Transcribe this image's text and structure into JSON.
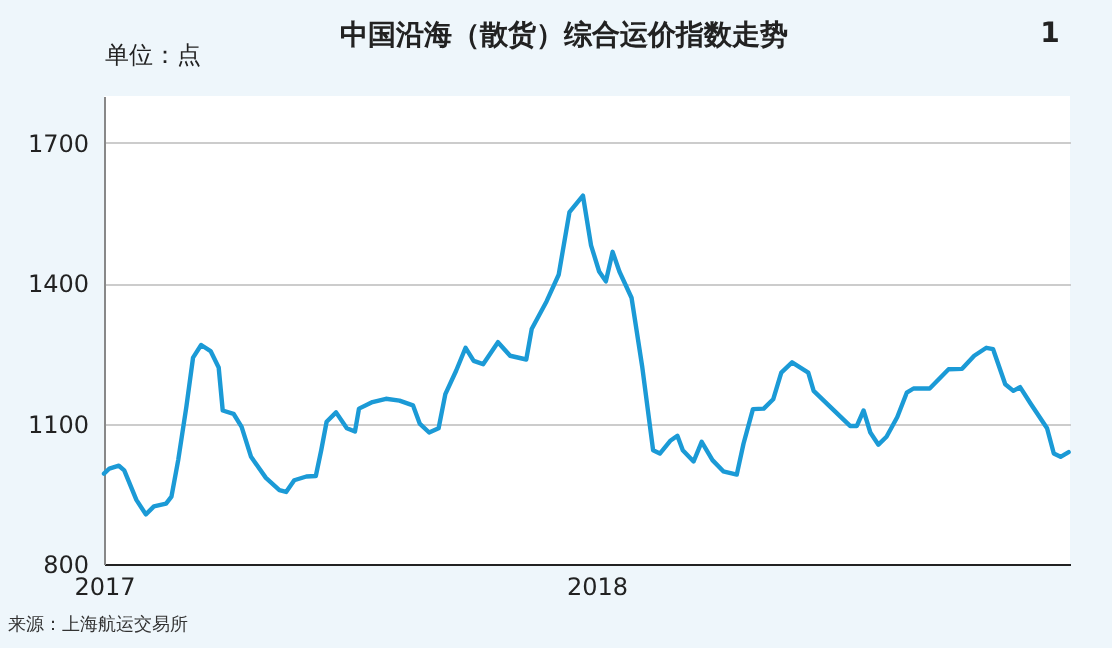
{
  "chart_data": {
    "type": "line",
    "title": "中国沿海（散货）综合运价指数走势",
    "ylabel": "单位：点",
    "annotations": [
      "1",
      "来源：上海航运交易所"
    ],
    "x": [
      "2017-01-01",
      "2017-01-05",
      "2017-01-12",
      "2017-01-16",
      "2017-01-25",
      "2017-02-01",
      "2017-02-07",
      "2017-02-16",
      "2017-02-20",
      "2017-02-25",
      "2017-03-03",
      "2017-03-08",
      "2017-03-14",
      "2017-03-21",
      "2017-03-27",
      "2017-03-30",
      "2017-04-07",
      "2017-04-13",
      "2017-04-20",
      "2017-05-01",
      "2017-05-11",
      "2017-05-16",
      "2017-05-22",
      "2017-05-31",
      "2017-06-07",
      "2017-06-11",
      "2017-06-15",
      "2017-06-22",
      "2017-06-30",
      "2017-07-06",
      "2017-07-09",
      "2017-07-19",
      "2017-07-29",
      "2017-08-08",
      "2017-08-18",
      "2017-08-23",
      "2017-08-30",
      "2017-09-06",
      "2017-09-11",
      "2017-09-19",
      "2017-09-26",
      "2017-10-02",
      "2017-10-09",
      "2017-10-20",
      "2017-10-29",
      "2017-11-10",
      "2017-11-14",
      "2017-11-25",
      "2017-12-04",
      "2017-12-12",
      "2017-12-22",
      "2017-12-28",
      "2018-01-03",
      "2018-01-08",
      "2018-01-13",
      "2018-01-18",
      "2018-01-27",
      "2018-02-04",
      "2018-02-12",
      "2018-02-17",
      "2018-02-25",
      "2018-03-02",
      "2018-03-06",
      "2018-03-14",
      "2018-03-20",
      "2018-03-28",
      "2018-04-05",
      "2018-04-15",
      "2018-04-20",
      "2018-04-27",
      "2018-05-05",
      "2018-05-12",
      "2018-05-18",
      "2018-05-26",
      "2018-06-07",
      "2018-06-11",
      "2018-06-21",
      "2018-07-08",
      "2018-07-13",
      "2018-07-18",
      "2018-07-23",
      "2018-07-29",
      "2018-08-04",
      "2018-08-12",
      "2018-08-19",
      "2018-08-24",
      "2018-09-05",
      "2018-09-19",
      "2018-09-29",
      "2018-10-08",
      "2018-10-17",
      "2018-10-22",
      "2018-10-31",
      "2018-11-06",
      "2018-11-11",
      "2018-11-19",
      "2018-12-01",
      "2018-12-06",
      "2018-12-11",
      "2018-12-17"
    ],
    "series": [
      {
        "color": "#1b9ad6",
        "values": [
          993,
          1004,
          1010,
          1000,
          937,
          906,
          923,
          929,
          944,
          1022,
          1135,
          1241,
          1268,
          1255,
          1220,
          1128,
          1121,
          1093,
          1029,
          984,
          958,
          954,
          979,
          987,
          988,
          1043,
          1104,
          1124,
          1090,
          1083,
          1132,
          1146,
          1153,
          1149,
          1139,
          1100,
          1081,
          1090,
          1163,
          1213,
          1262,
          1234,
          1227,
          1274,
          1245,
          1237,
          1302,
          1361,
          1418,
          1552,
          1587,
          1481,
          1425,
          1404,
          1467,
          1425,
          1369,
          1220,
          1043,
          1036,
          1064,
          1074,
          1043,
          1019,
          1061,
          1022,
          998,
          991,
          1057,
          1131,
          1132,
          1152,
          1209,
          1231,
          1209,
          1170,
          1142,
          1095,
          1095,
          1128,
          1081,
          1055,
          1072,
          1114,
          1166,
          1175,
          1175,
          1216,
          1217,
          1245,
          1262,
          1259,
          1184,
          1170,
          1178,
          1142,
          1090,
          1036,
          1029,
          1039
        ]
      }
    ],
    "xlim": [
      "2017-01-01",
      "2018-12-18"
    ],
    "xticks": [
      "2017",
      "2018"
    ],
    "ylim": [
      800,
      1800
    ],
    "yticks": [
      800,
      1100,
      1400,
      1700
    ],
    "grid": "y",
    "marker": "none",
    "line_style": "solid"
  }
}
